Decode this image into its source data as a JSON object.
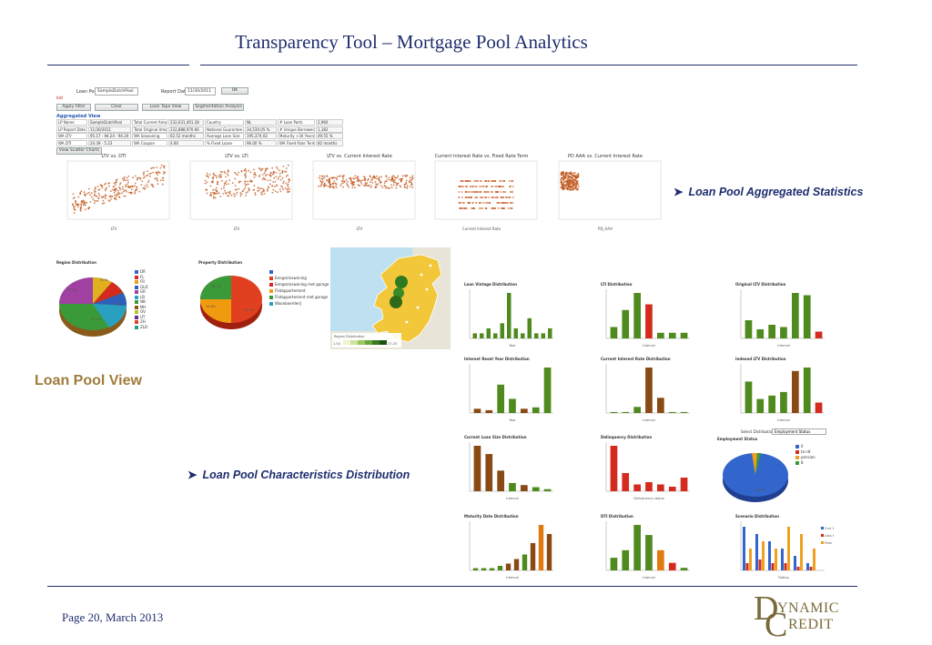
{
  "slide": {
    "title": "Transparency Tool – Mortgage Pool Analytics",
    "footer": "Page 20,  March 2013",
    "logo_big_d": "D",
    "logo_big_c": "C",
    "logo_ynamic": "YNAMIC",
    "logo_redit": "REDIT",
    "colors": {
      "title": "#1f2e6e",
      "label": "#a07c3b",
      "bar_green": "#4f8a1e",
      "bar_red": "#d42b1e"
    }
  },
  "annotations": {
    "aggregated": "Loan Pool Aggregated Statistics",
    "section": "Loan Pool View",
    "characteristics": "Loan Pool Characteristics Distribution"
  },
  "app": {
    "loan_pool_label": "Loan Pool",
    "loan_pool_value": "SampleDutchPool",
    "report_date_label": "Report Date",
    "report_date_value": "11/30/2011",
    "ok_button": "OK",
    "link_text": "Init",
    "apply_filter": "Apply Filter",
    "clear": "Clear",
    "loan_tape_view": "Loan Tape View",
    "segmentation_analysis": "Segmentation Analysis",
    "aggregated_view_title": "Aggregated View",
    "view_scatter_charts": "View Scatter Charts",
    "agg_rows": [
      [
        "LP Name",
        "SampleDutchPool",
        "Total Current Amount",
        "232,631,401.28",
        "Country",
        "NL",
        "# Loan Parts",
        "2,960"
      ],
      [
        "LP Report Date",
        "11/30/2011",
        "Total Original Amount",
        "232,888,970.66",
        "National Guarantee",
        "34,530.05 %",
        "# Unique Borrowers",
        "1,182"
      ],
      [
        "WA LTV",
        "95.17 - 94.24 - 94.20",
        "WA Seasoning",
        "62.52 months",
        "Average Loan Size",
        "195,374.02",
        "Maturity >30 Years",
        "49.55 %"
      ],
      [
        "WA DTI",
        "24.39 - 5.23",
        "WA Coupon",
        "4.60",
        "% Fixed Loans",
        "96.00 %",
        "WA Fixed Rate Term",
        "82 months"
      ]
    ],
    "scatter_titles": [
      "LTV vs. DTI",
      "LTV vs. LTI",
      "LTV vs. Current Interest Rate",
      "Current Interest Rate vs. Fixed Rate Term",
      "PD AAA vs. Current Interest Rate"
    ],
    "scatter_xlabels": [
      "LTV",
      "LTV",
      "LTV",
      "Current Interest Rate",
      "PD_AAA"
    ]
  },
  "region": {
    "title": "Region Distribution",
    "legend": [
      "DR",
      "FL",
      "FR",
      "GLD",
      "GR",
      "LB",
      "NB",
      "NH",
      "OV",
      "UT",
      "ZH",
      "ZLD"
    ],
    "labels": [
      "27.3%",
      "9.0%",
      "27.1%",
      "9.7%"
    ]
  },
  "property": {
    "title": "Property Distribution",
    "legend": [
      "",
      "Eengezinswoning",
      "Eengezinswoning met garage",
      "Flatappartement",
      "Flatappartement met garage",
      "Woonboerderij"
    ],
    "labels": [
      "18.7%",
      "14.6%",
      "61.9%"
    ]
  },
  "map": {
    "legend_title": "Region Distribution",
    "legend_min": "1.54",
    "legend_max": "27.25"
  },
  "charts": [
    {
      "title": "Loan Vintage Distribution",
      "xlabel": "Year",
      "color": "green"
    },
    {
      "title": "LTI Distribution",
      "xlabel": "Interval",
      "color": "mixed1"
    },
    {
      "title": "Original LTV Distribution",
      "xlabel": "Interval",
      "color": "mixed2"
    },
    {
      "title": "Interest Reset Year Distribution",
      "xlabel": "Year",
      "color": "green"
    },
    {
      "title": "Current Interest Rate Distribution",
      "xlabel": "Interval",
      "color": "mixed3"
    },
    {
      "title": "Indexed LTV Distribution",
      "xlabel": "Interval",
      "color": "mixed4"
    },
    {
      "title": "Current Loan Size Distribution",
      "xlabel": "Interval",
      "color": "brown"
    },
    {
      "title": "Delinquency Distribution",
      "xlabel": "Delinquency status",
      "color": "red"
    },
    {
      "title": "Maturity Date Distribution",
      "xlabel": "Interval",
      "color": "mixed5"
    },
    {
      "title": "DTI Distribution",
      "xlabel": "Interval",
      "color": "mixed6"
    },
    {
      "title": "Scenario Distribution",
      "xlabel": "Rating",
      "color": "multi"
    }
  ],
  "employment": {
    "select_label": "Select Distribution",
    "select_value": "Employment Status",
    "title": "Employment Status",
    "legend": [
      "0",
      "to nlt",
      "pension",
      "8"
    ],
    "label": "96.4%"
  },
  "scenario_legend": [
    "Curr Default",
    "Loss Sever",
    "Prob"
  ]
}
